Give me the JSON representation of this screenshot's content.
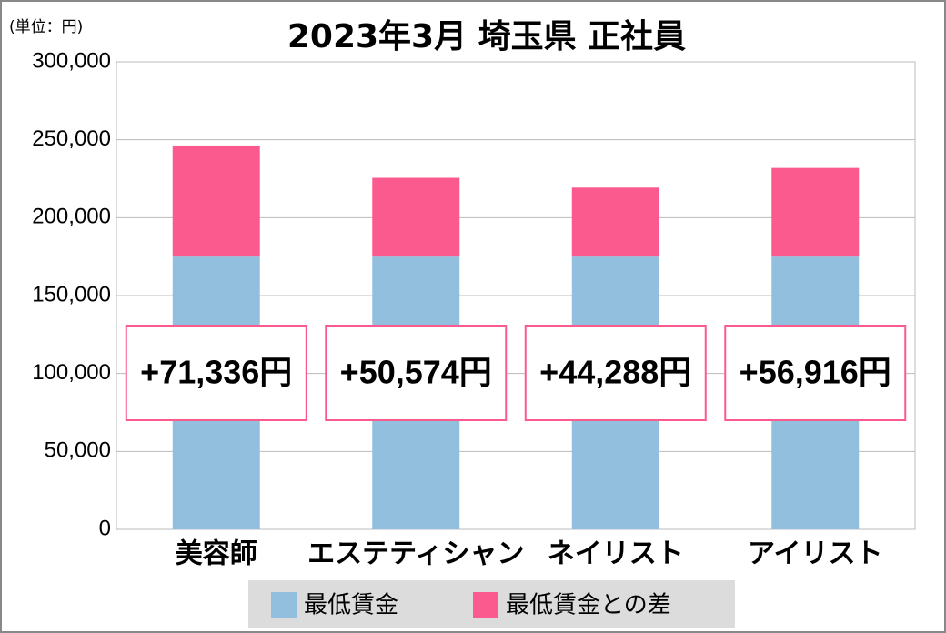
{
  "chart_data": {
    "type": "stacked_bar",
    "title": "2023年3月 埼玉県 正社員",
    "unit_label": "(単位：円)",
    "categories": [
      "美容師",
      "エステティシャン",
      "ネイリスト",
      "アイリスト"
    ],
    "series": [
      {
        "name": "最低賃金",
        "color": "#93bfdf",
        "values": [
          175000,
          175000,
          175000,
          175000
        ]
      },
      {
        "name": "最低賃金との差",
        "color": "#fb5a8f",
        "values": [
          71336,
          50574,
          44288,
          56916
        ],
        "value_labels": [
          "+71,336円",
          "+50,574円",
          "+44,288円",
          "+56,916円"
        ]
      }
    ],
    "ylim": [
      0,
      300000
    ],
    "yticks": [
      0,
      {
        "value": 50000,
        "label": "50,000"
      },
      {
        "value": 100000,
        "label": "100,000"
      },
      {
        "value": 150000,
        "label": "150,000"
      },
      {
        "value": 200000,
        "label": "200,000"
      },
      {
        "value": 250000,
        "label": "250,000"
      },
      {
        "value": 300000,
        "label": "300,000"
      }
    ],
    "grid": true
  }
}
